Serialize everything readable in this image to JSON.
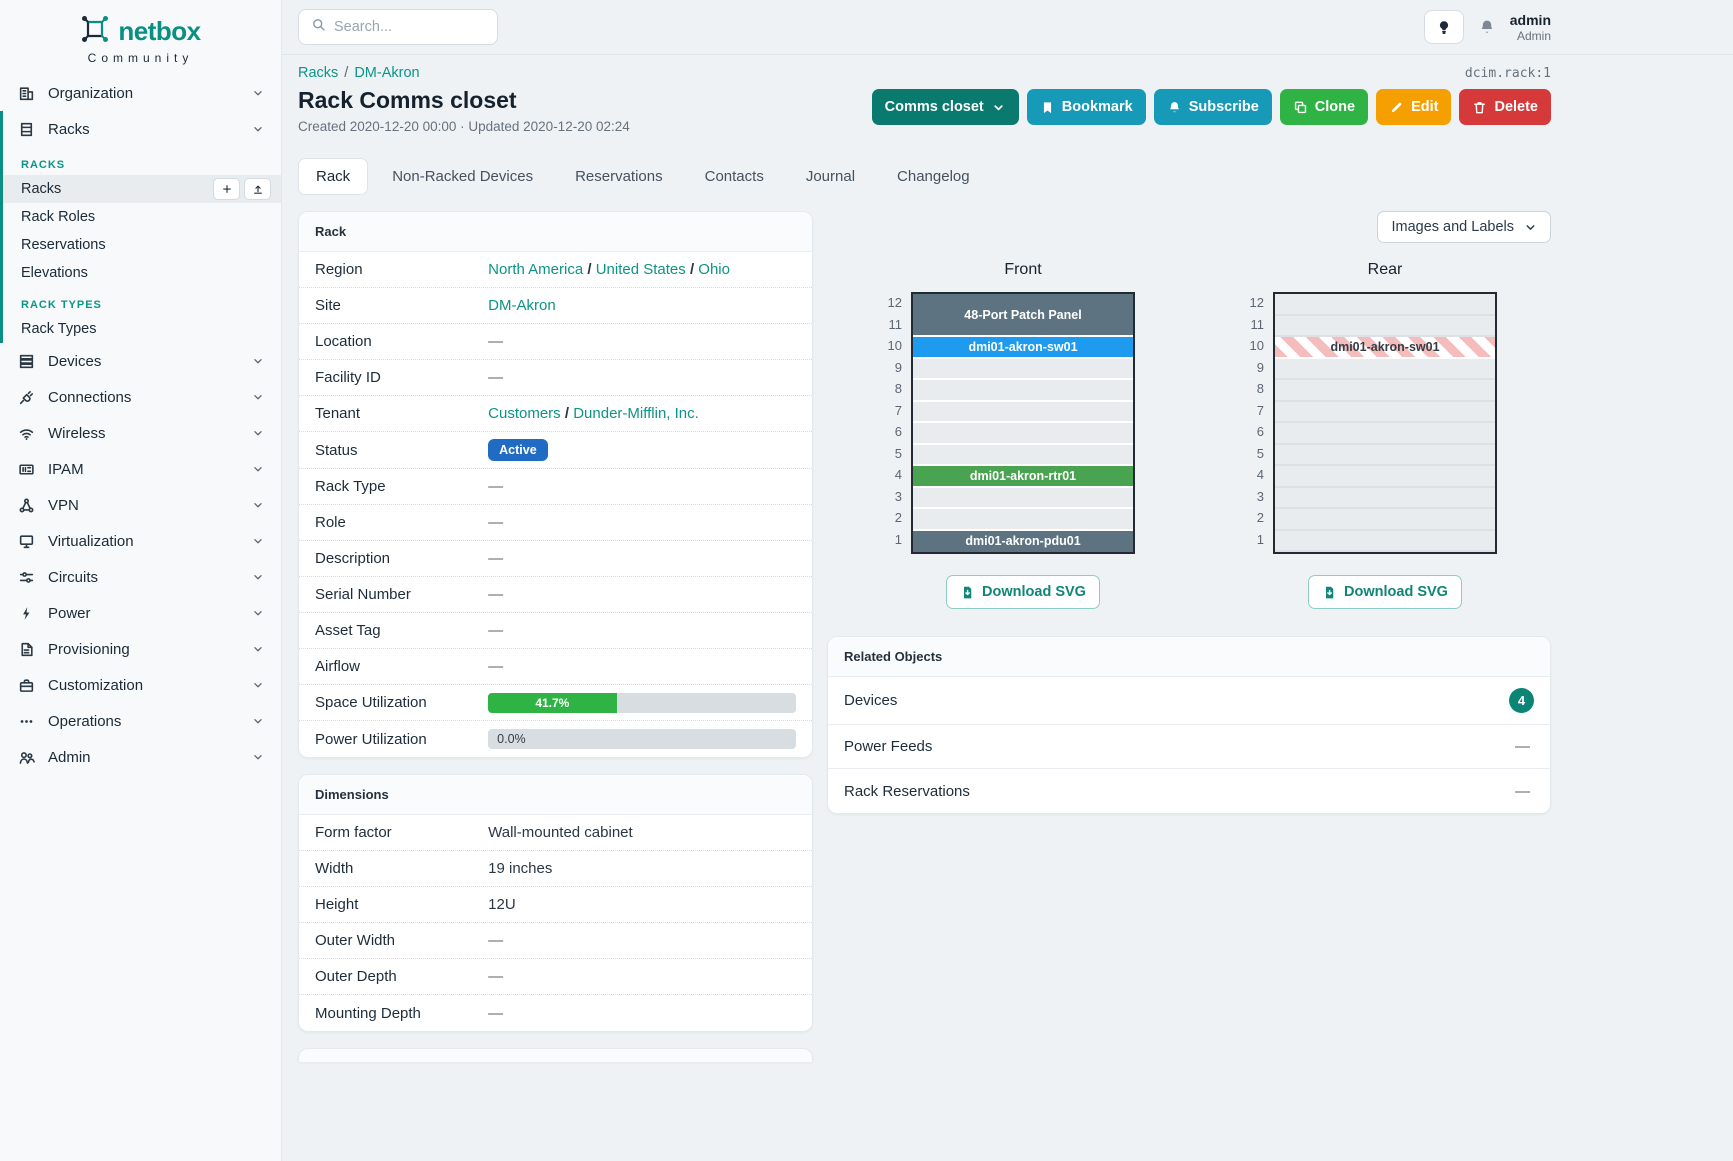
{
  "sidebar": {
    "brand": "netbox",
    "brand_sub": "Community",
    "items": [
      {
        "label": "Organization",
        "icon": "building-icon"
      },
      {
        "label": "Racks",
        "icon": "rack-icon",
        "expanded": true,
        "sections": [
          {
            "header": "RACKS",
            "links": [
              {
                "label": "Racks",
                "active": true,
                "buttons": [
                  "plus-icon",
                  "upload-icon"
                ]
              },
              {
                "label": "Rack Roles"
              },
              {
                "label": "Reservations"
              },
              {
                "label": "Elevations"
              }
            ]
          },
          {
            "header": "RACK TYPES",
            "links": [
              {
                "label": "Rack Types"
              }
            ]
          }
        ]
      },
      {
        "label": "Devices",
        "icon": "server-icon"
      },
      {
        "label": "Connections",
        "icon": "plug-icon"
      },
      {
        "label": "Wireless",
        "icon": "wifi-icon"
      },
      {
        "label": "IPAM",
        "icon": "ipam-icon"
      },
      {
        "label": "VPN",
        "icon": "network-icon"
      },
      {
        "label": "Virtualization",
        "icon": "monitor-icon"
      },
      {
        "label": "Circuits",
        "icon": "circuits-icon"
      },
      {
        "label": "Power",
        "icon": "bolt-icon"
      },
      {
        "label": "Provisioning",
        "icon": "document-icon"
      },
      {
        "label": "Customization",
        "icon": "briefcase-icon"
      },
      {
        "label": "Operations",
        "icon": "operations-icon"
      },
      {
        "label": "Admin",
        "icon": "users-icon"
      }
    ]
  },
  "topbar": {
    "search_placeholder": "Search...",
    "username": "admin",
    "role": "Admin"
  },
  "page": {
    "object_id": "dcim.rack:1",
    "breadcrumb": [
      "Racks",
      "DM-Akron"
    ],
    "title": "Rack Comms closet",
    "meta": "Created 2020-12-20 00:00 · Updated 2020-12-20 02:24",
    "actions": {
      "rack_selector": "Comms closet",
      "bookmark": "Bookmark",
      "subscribe": "Subscribe",
      "clone": "Clone",
      "edit": "Edit",
      "delete": "Delete"
    },
    "tabs": [
      {
        "label": "Rack",
        "active": true
      },
      {
        "label": "Non-Racked Devices"
      },
      {
        "label": "Reservations"
      },
      {
        "label": "Contacts"
      },
      {
        "label": "Journal"
      },
      {
        "label": "Changelog"
      }
    ]
  },
  "rack_panel": {
    "title": "Rack",
    "rows": [
      {
        "label": "Region",
        "type": "links",
        "parts": [
          "North America",
          "United States",
          "Ohio"
        ]
      },
      {
        "label": "Site",
        "type": "links",
        "parts": [
          "DM-Akron"
        ]
      },
      {
        "label": "Location",
        "type": "dash"
      },
      {
        "label": "Facility ID",
        "type": "dash"
      },
      {
        "label": "Tenant",
        "type": "links",
        "parts": [
          "Customers",
          "Dunder-Mifflin, Inc."
        ]
      },
      {
        "label": "Status",
        "type": "badge",
        "value": "Active",
        "color": "#206bc4"
      },
      {
        "label": "Rack Type",
        "type": "dash"
      },
      {
        "label": "Role",
        "type": "dash"
      },
      {
        "label": "Description",
        "type": "dash"
      },
      {
        "label": "Serial Number",
        "type": "dash"
      },
      {
        "label": "Asset Tag",
        "type": "dash"
      },
      {
        "label": "Airflow",
        "type": "dash"
      },
      {
        "label": "Space Utilization",
        "type": "progress",
        "percent": 41.7,
        "text": "41.7%",
        "bar_color": "#2fb344"
      },
      {
        "label": "Power Utilization",
        "type": "progress",
        "percent": 0,
        "text": "0.0%",
        "bar_color": "#2fb344"
      }
    ],
    "dash_char": "—"
  },
  "dimensions_panel": {
    "title": "Dimensions",
    "rows": [
      {
        "label": "Form factor",
        "type": "text",
        "value": "Wall-mounted cabinet"
      },
      {
        "label": "Width",
        "type": "text",
        "value": "19 inches"
      },
      {
        "label": "Height",
        "type": "text",
        "value": "12U"
      },
      {
        "label": "Outer Width",
        "type": "dash"
      },
      {
        "label": "Outer Depth",
        "type": "dash"
      },
      {
        "label": "Mounting Depth",
        "type": "dash"
      }
    ]
  },
  "elevations": {
    "view_selector": "Images and Labels",
    "download_label": "Download SVG",
    "unit_count": 12,
    "unit_colors": {
      "slate": "#5d7381",
      "blue": "#1e9bef",
      "green": "#4aa351",
      "stripes_pink": "#f5bcbc"
    },
    "faces": [
      {
        "title": "Front",
        "blocks": [
          {
            "top_unit": 12,
            "span": 2,
            "label": "48-Port Patch Panel",
            "color": "slate"
          },
          {
            "top_unit": 10,
            "span": 1,
            "label": "dmi01-akron-sw01",
            "color": "blue"
          },
          {
            "top_unit": 4,
            "span": 1,
            "label": "dmi01-akron-rtr01",
            "color": "green"
          },
          {
            "top_unit": 1,
            "span": 1,
            "label": "dmi01-akron-pdu01",
            "color": "slate"
          }
        ]
      },
      {
        "title": "Rear",
        "blocks": [
          {
            "top_unit": 10,
            "span": 1,
            "label": "dmi01-akron-sw01",
            "color": "stripes"
          }
        ]
      }
    ]
  },
  "related_panel": {
    "title": "Related Objects",
    "rows": [
      {
        "label": "Devices",
        "badge": "4"
      },
      {
        "label": "Power Feeds",
        "value": "—"
      },
      {
        "label": "Rack Reservations",
        "value": "—"
      }
    ]
  }
}
